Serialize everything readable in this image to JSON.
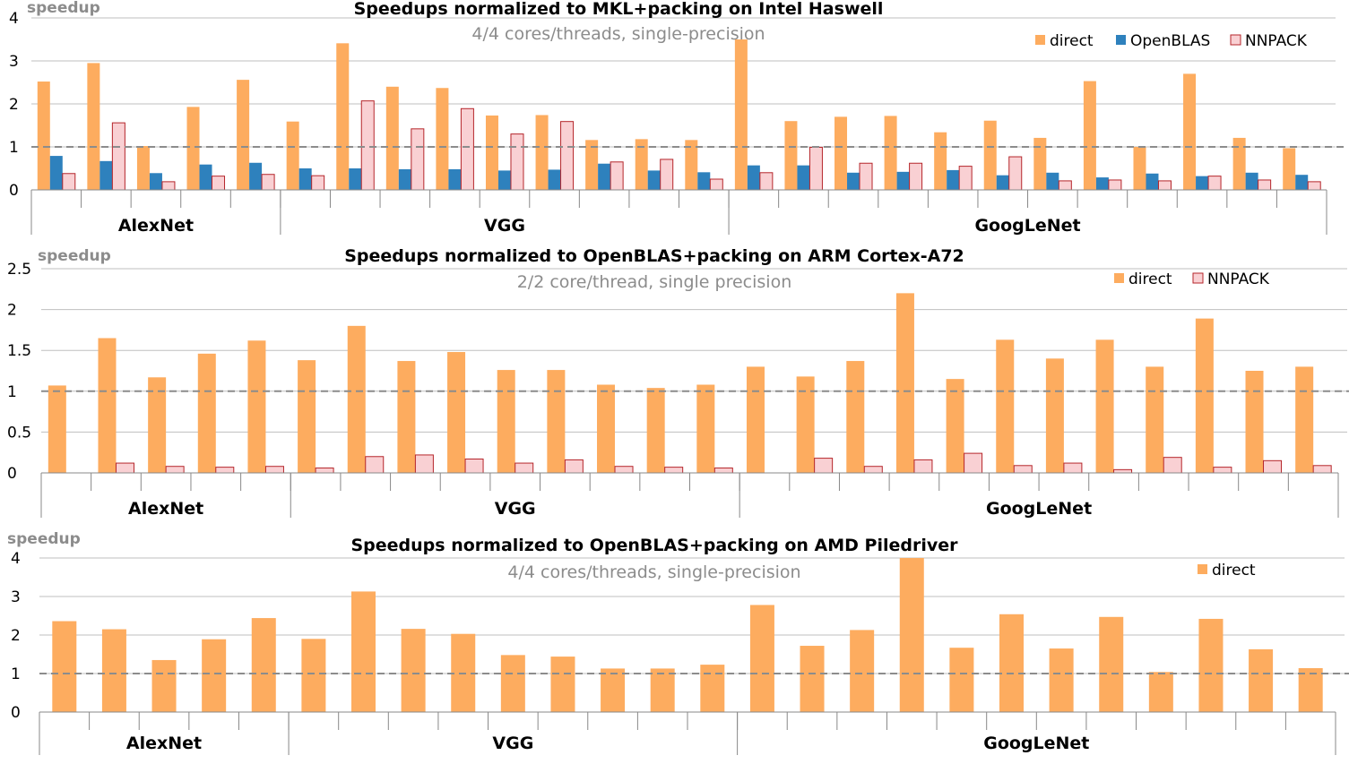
{
  "colors": {
    "direct": "#fdac5f",
    "OpenBLAS": "#2e81bd",
    "NNPACK": "#f9d0d3",
    "NNPACK_border": "#b5262b",
    "grid": "#bfbfbf",
    "reference": "#8c8c8c"
  },
  "chart_data": [
    {
      "type": "bar",
      "title": "Speedups normalized to MKL+packing on Intel Haswell",
      "subtitle": "4/4 cores/threads, single-precision",
      "ylabel": "speedup",
      "ylim": [
        0,
        4
      ],
      "yticks": [
        "0",
        "1",
        "2",
        "3",
        "4"
      ],
      "grid": true,
      "reference_line": 1,
      "legend": "top-right",
      "groups": [
        {
          "name": "AlexNet",
          "count": 5
        },
        {
          "name": "VGG",
          "count": 9
        },
        {
          "name": "GoogLeNet",
          "count": 12
        }
      ],
      "series": [
        {
          "name": "direct",
          "values": [
            2.52,
            2.95,
            1.02,
            1.93,
            2.56,
            1.59,
            3.41,
            2.4,
            2.37,
            1.73,
            1.74,
            1.16,
            1.18,
            1.16,
            3.5,
            1.6,
            1.7,
            1.72,
            1.34,
            1.61,
            1.21,
            2.53,
            1.0,
            2.7,
            1.21,
            0.97
          ]
        },
        {
          "name": "OpenBLAS",
          "values": [
            0.79,
            0.67,
            0.39,
            0.59,
            0.63,
            0.5,
            0.5,
            0.48,
            0.48,
            0.45,
            0.47,
            0.61,
            0.45,
            0.41,
            0.57,
            0.57,
            0.4,
            0.42,
            0.46,
            0.34,
            0.4,
            0.29,
            0.38,
            0.32,
            0.4,
            0.35
          ]
        },
        {
          "name": "NNPACK",
          "values": [
            0.38,
            1.56,
            0.19,
            0.32,
            0.36,
            0.33,
            2.07,
            1.42,
            1.89,
            1.3,
            1.59,
            0.65,
            0.71,
            0.25,
            0.4,
            0.99,
            0.62,
            0.62,
            0.55,
            0.77,
            0.21,
            0.23,
            0.21,
            0.32,
            0.23,
            0.19
          ]
        }
      ]
    },
    {
      "type": "bar",
      "title": "Speedups normalized to OpenBLAS+packing on ARM Cortex-A72",
      "subtitle": "2/2 core/thread,  single precision",
      "ylabel": "speedup",
      "ylim": [
        0,
        2.5
      ],
      "yticks": [
        "0",
        "0.5",
        "1",
        "1.5",
        "2",
        "2.5"
      ],
      "grid": true,
      "reference_line": 1,
      "legend": "top-right",
      "groups": [
        {
          "name": "AlexNet",
          "count": 5
        },
        {
          "name": "VGG",
          "count": 9
        },
        {
          "name": "GoogLeNet",
          "count": 12
        }
      ],
      "series": [
        {
          "name": "direct",
          "values": [
            1.07,
            1.65,
            1.17,
            1.46,
            1.62,
            1.38,
            1.8,
            1.37,
            1.48,
            1.26,
            1.26,
            1.08,
            1.04,
            1.08,
            1.3,
            1.18,
            1.37,
            2.2,
            1.15,
            1.63,
            1.4,
            1.63,
            1.3,
            1.89,
            1.25,
            1.3
          ]
        },
        {
          "name": "NNPACK",
          "values": [
            0,
            0.12,
            0.08,
            0.07,
            0.08,
            0.06,
            0.2,
            0.22,
            0.17,
            0.12,
            0.16,
            0.08,
            0.07,
            0.06,
            0,
            0.18,
            0.08,
            0.16,
            0.24,
            0.09,
            0.12,
            0.04,
            0.19,
            0.07,
            0.15,
            0.09
          ]
        }
      ]
    },
    {
      "type": "bar",
      "title": "Speedups normalized to OpenBLAS+packing on AMD Piledriver",
      "subtitle": "4/4 cores/threads, single-precision",
      "ylabel": "speedup",
      "ylim": [
        0,
        4
      ],
      "yticks": [
        "0",
        "1",
        "2",
        "3",
        "4"
      ],
      "grid": true,
      "reference_line": 1,
      "legend": "top-right",
      "groups": [
        {
          "name": "AlexNet",
          "count": 5
        },
        {
          "name": "VGG",
          "count": 9
        },
        {
          "name": "GoogLeNet",
          "count": 12
        }
      ],
      "series": [
        {
          "name": "direct",
          "values": [
            2.36,
            2.15,
            1.35,
            1.89,
            2.44,
            1.9,
            3.13,
            2.16,
            2.03,
            1.48,
            1.44,
            1.13,
            1.13,
            1.23,
            2.78,
            1.72,
            2.13,
            4.0,
            1.67,
            2.54,
            1.65,
            2.47,
            1.04,
            2.42,
            1.63,
            1.14
          ]
        }
      ]
    }
  ]
}
